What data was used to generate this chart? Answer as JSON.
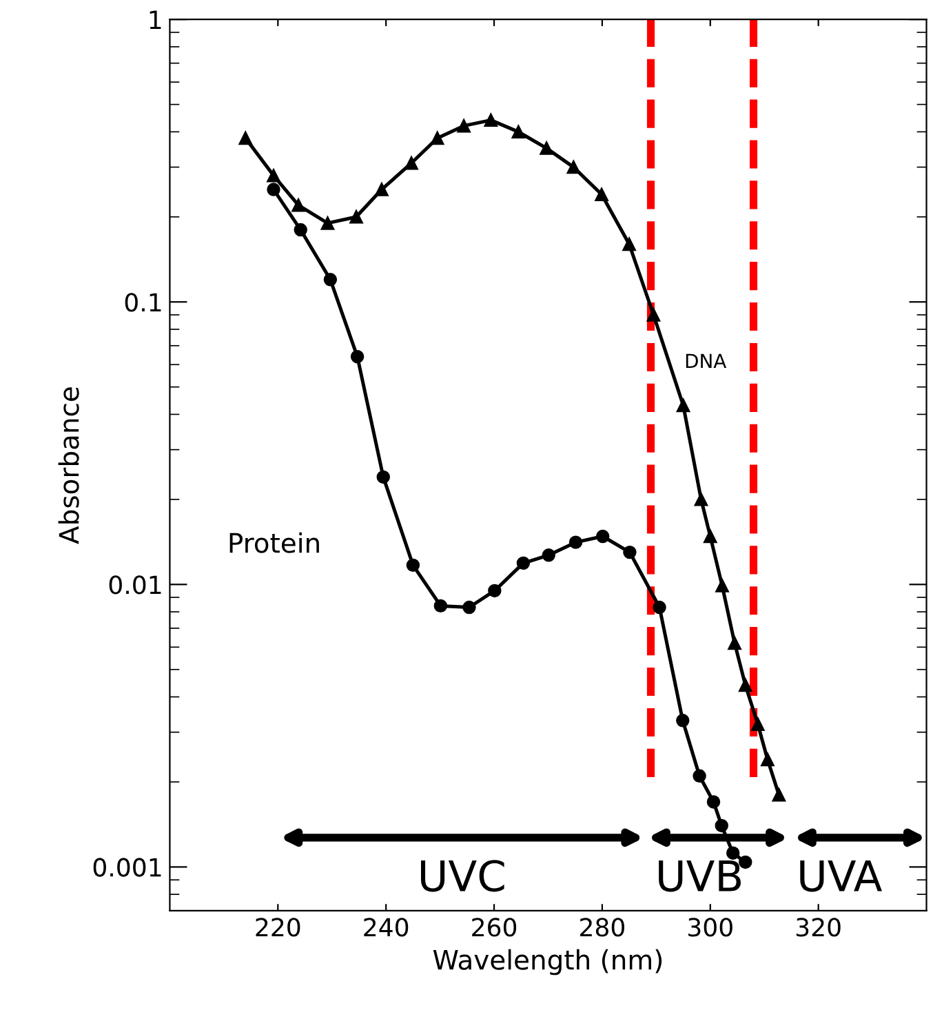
{
  "chart_data": {
    "type": "line",
    "xlabel": "Wavelength (nm)",
    "ylabel": "Absorbance",
    "log": "y",
    "xlim": [
      200,
      340
    ],
    "xticks": [
      220,
      240,
      260,
      280,
      300,
      320
    ],
    "ylim": [
      0.0007,
      1
    ],
    "yticks": [
      0.001,
      0.01,
      0.1,
      1
    ],
    "series": [
      {
        "color": "#000000",
        "marker": "triangle",
        "x": [
          214.0,
          219.2,
          223.8,
          229.2,
          234.5,
          239.2,
          244.7,
          249.5,
          254.4,
          259.4,
          264.5,
          269.7,
          274.7,
          279.9,
          285.0,
          289.5,
          295.0,
          298.3,
          300.0,
          302.2,
          304.5,
          306.5,
          308.8,
          310.6,
          312.7
        ],
        "values": [
          0.38,
          0.28,
          0.22,
          0.19,
          0.2,
          0.25,
          0.31,
          0.38,
          0.42,
          0.44,
          0.4,
          0.35,
          0.3,
          0.24,
          0.16,
          0.09,
          0.043,
          0.02,
          0.0148,
          0.0099,
          0.0062,
          0.0044,
          0.0032,
          0.0024,
          0.0018
        ]
      },
      {
        "color": "#000000",
        "marker": "circle",
        "x": [
          219.2,
          224.2,
          229.7,
          234.7,
          239.5,
          245.0,
          250.1,
          255.4,
          260.1,
          265.4,
          270.1,
          275.1,
          280.1,
          285.1,
          290.6,
          294.9,
          298.0,
          300.6,
          302.1,
          304.2,
          306.5
        ],
        "values": [
          0.25,
          0.18,
          0.12,
          0.064,
          0.024,
          0.0117,
          0.0084,
          0.0083,
          0.0095,
          0.0119,
          0.0127,
          0.0141,
          0.0148,
          0.013,
          0.0083,
          0.0033,
          0.0021,
          0.0017,
          0.0014,
          0.00112,
          0.00104
        ]
      }
    ],
    "annotations": [
      "DNA",
      "Protein",
      "UVC",
      "UVB",
      "UVA"
    ],
    "ref_lines": [
      {
        "axis": "x",
        "value": 289,
        "color": "#ff0000",
        "line_style": "dashed"
      },
      {
        "axis": "x",
        "value": 308,
        "color": "#ff0000",
        "line_style": "dashed"
      }
    ]
  }
}
